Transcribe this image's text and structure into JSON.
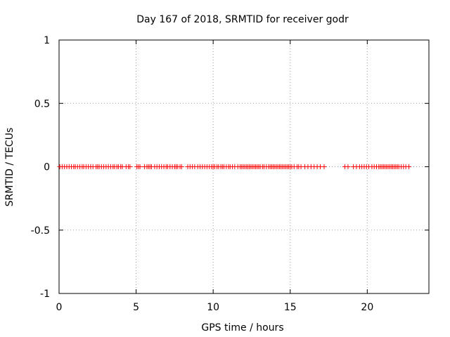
{
  "chart_data": {
    "type": "scatter",
    "title": "Day 167 of 2018, SRMTID for receiver godr",
    "xlabel": "GPS time / hours",
    "ylabel": "SRMTID / TECUs",
    "xlim": [
      0,
      24
    ],
    "ylim": [
      -1,
      1
    ],
    "grid": true,
    "marker": "plus",
    "series": [
      {
        "name": "SRMTID",
        "color": "#ff0000",
        "x": [
          0.05,
          0.2,
          0.35,
          0.5,
          0.65,
          0.8,
          0.95,
          1.05,
          1.2,
          1.35,
          1.5,
          1.6,
          1.75,
          1.9,
          2.05,
          2.2,
          2.4,
          2.5,
          2.6,
          2.75,
          2.9,
          3.05,
          3.2,
          3.35,
          3.5,
          3.6,
          3.75,
          3.85,
          4.0,
          4.1,
          4.35,
          4.5,
          4.6,
          5.05,
          5.15,
          5.25,
          5.55,
          5.7,
          5.8,
          5.9,
          6.0,
          6.2,
          6.35,
          6.5,
          6.65,
          6.8,
          6.95,
          7.05,
          7.2,
          7.35,
          7.5,
          7.6,
          7.7,
          7.85,
          7.95,
          8.35,
          8.5,
          8.65,
          8.8,
          9.0,
          9.15,
          9.3,
          9.45,
          9.6,
          9.75,
          9.9,
          10.0,
          10.1,
          10.25,
          10.35,
          10.5,
          10.6,
          10.7,
          10.85,
          11.0,
          11.1,
          11.25,
          11.4,
          11.6,
          11.75,
          11.85,
          11.95,
          12.05,
          12.15,
          12.25,
          12.35,
          12.45,
          12.55,
          12.65,
          12.75,
          12.85,
          12.95,
          13.05,
          13.2,
          13.3,
          13.45,
          13.6,
          13.7,
          13.8,
          13.9,
          14.0,
          14.1,
          14.2,
          14.3,
          14.4,
          14.5,
          14.6,
          14.7,
          14.8,
          14.9,
          15.0,
          15.1,
          15.25,
          15.45,
          15.55,
          15.7,
          15.95,
          16.15,
          16.35,
          16.55,
          16.75,
          16.95,
          17.2,
          18.55,
          18.75,
          19.1,
          19.3,
          19.5,
          19.65,
          19.8,
          19.95,
          20.1,
          20.3,
          20.45,
          20.6,
          20.75,
          20.85,
          20.95,
          21.05,
          21.15,
          21.25,
          21.35,
          21.45,
          21.55,
          21.65,
          21.75,
          21.85,
          21.95,
          22.05,
          22.2,
          22.35,
          22.5,
          22.7
        ],
        "y": [
          0,
          0,
          0,
          0,
          0,
          0,
          0,
          0,
          0,
          0,
          0,
          0,
          0,
          0,
          0,
          0,
          0,
          0,
          0,
          0,
          0,
          0,
          0,
          0,
          0,
          0,
          0,
          0,
          0,
          0,
          0,
          0,
          0,
          0,
          0,
          0,
          0,
          0,
          0,
          0,
          0,
          0,
          0,
          0,
          0,
          0,
          0,
          0,
          0,
          0,
          0,
          0,
          0,
          0,
          0,
          0,
          0,
          0,
          0,
          0,
          0,
          0,
          0,
          0,
          0,
          0,
          0,
          0,
          0,
          0,
          0,
          0,
          0,
          0,
          0,
          0,
          0,
          0,
          0,
          0,
          0,
          0,
          0,
          0,
          0,
          0,
          0,
          0,
          0,
          0,
          0,
          0,
          0,
          0,
          0,
          0,
          0,
          0,
          0,
          0,
          0,
          0,
          0,
          0,
          0,
          0,
          0,
          0,
          0,
          0,
          0,
          0,
          0,
          0,
          0,
          0,
          0,
          0,
          0,
          0,
          0,
          0,
          0,
          0,
          0,
          0,
          0,
          0,
          0,
          0,
          0,
          0,
          0,
          0,
          0,
          0,
          0,
          0,
          0,
          0,
          0,
          0,
          0,
          0,
          0,
          0,
          0,
          0,
          0,
          0,
          0,
          0,
          0
        ]
      }
    ],
    "x_ticks": [
      {
        "value": 0,
        "label": "0"
      },
      {
        "value": 5,
        "label": "5"
      },
      {
        "value": 10,
        "label": "10"
      },
      {
        "value": 15,
        "label": "15"
      },
      {
        "value": 20,
        "label": "20"
      }
    ],
    "y_ticks": [
      {
        "value": 1,
        "label": "1"
      },
      {
        "value": 0.5,
        "label": "0.5"
      },
      {
        "value": 0,
        "label": "0"
      },
      {
        "value": -0.5,
        "label": "-0.5"
      },
      {
        "value": -1,
        "label": "-1"
      }
    ]
  }
}
